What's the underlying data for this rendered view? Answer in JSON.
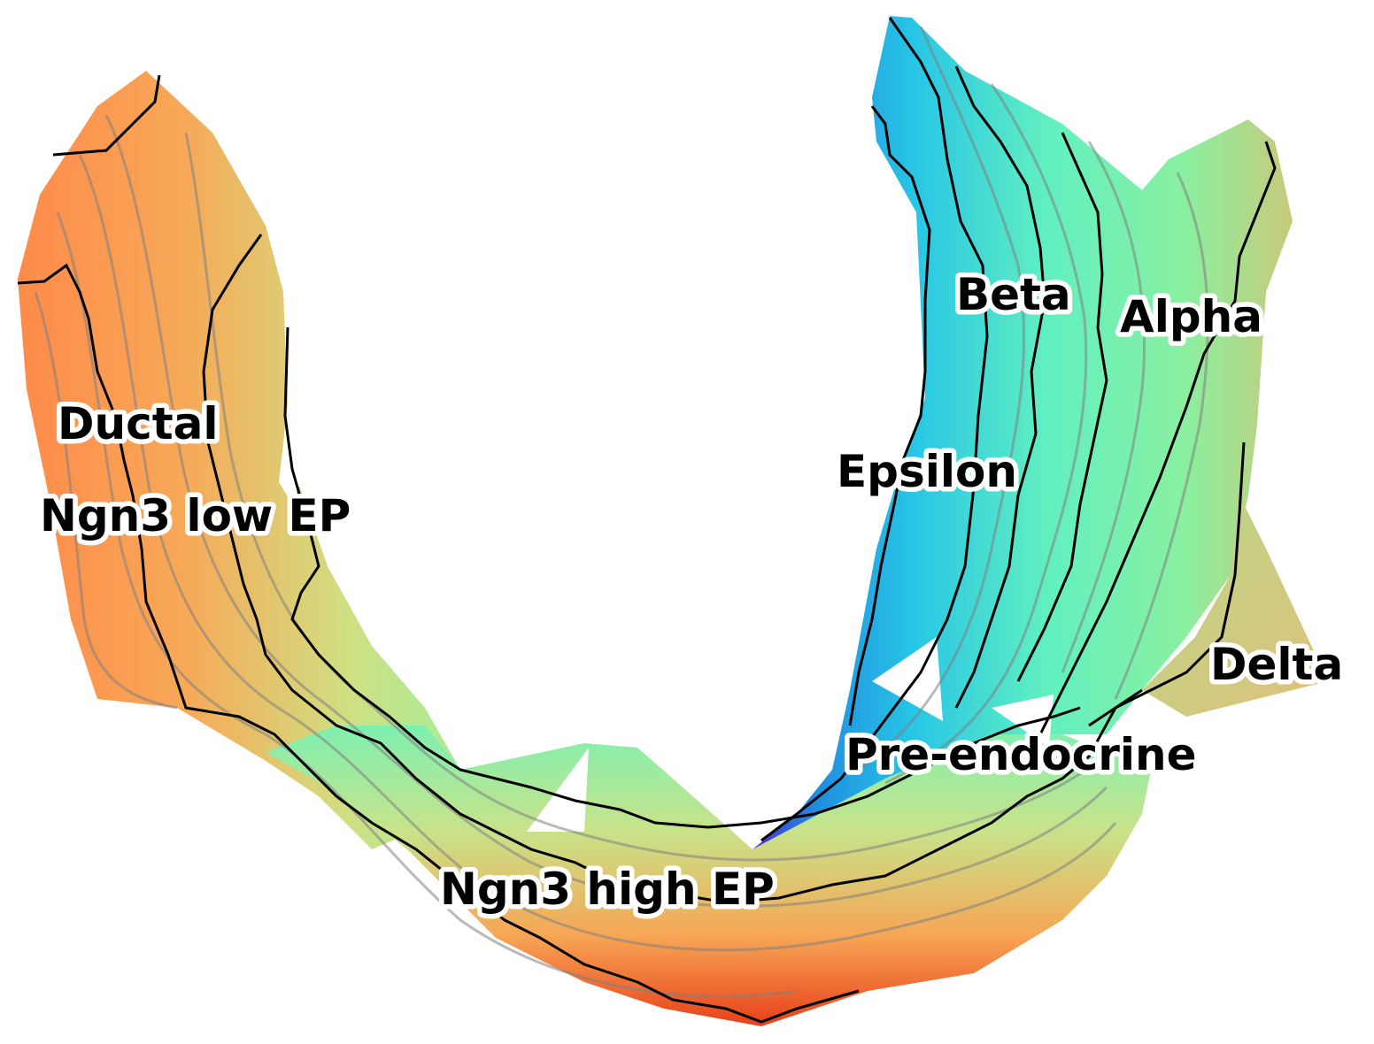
{
  "chart_data": {
    "type": "contour",
    "title": "",
    "xlabel": "",
    "ylabel": "",
    "axes_visible": false,
    "grid": false,
    "colormap": "rainbow (blue = low, red = high)",
    "contour_lines": {
      "major": "#000000",
      "minor": "#808080"
    },
    "clusters": [
      {
        "name": "Ductal"
      },
      {
        "name": "Ngn3 low EP"
      },
      {
        "name": "Ngn3 high EP"
      },
      {
        "name": "Pre-endocrine"
      },
      {
        "name": "Epsilon"
      },
      {
        "name": "Beta"
      },
      {
        "name": "Alpha"
      },
      {
        "name": "Delta"
      }
    ]
  }
}
